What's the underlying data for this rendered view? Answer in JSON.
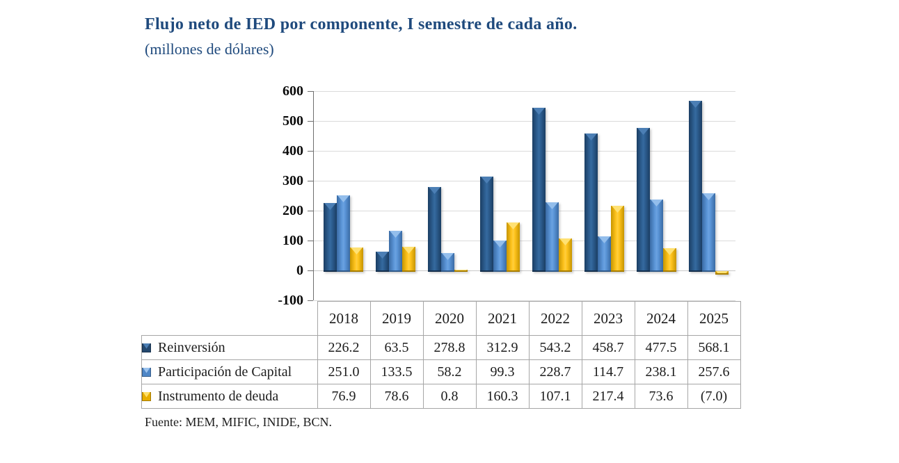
{
  "header": {
    "title": "Flujo neto de IED por componente, I semestre de cada año.",
    "subtitle": "(millones de dólares)"
  },
  "chart_data": {
    "type": "bar",
    "title": "Flujo neto de IED por componente, I semestre de cada año.",
    "units": "millones de dólares",
    "categories": [
      "2018",
      "2019",
      "2020",
      "2021",
      "2022",
      "2023",
      "2024",
      "2025"
    ],
    "series": [
      {
        "name": "Reinversión",
        "slug": "reinversion",
        "values": [
          226.2,
          63.5,
          278.8,
          312.9,
          543.2,
          458.7,
          477.5,
          568.1
        ],
        "color": "#2E6093",
        "edge": "#1B3E63",
        "highlight": "#4C7FB5"
      },
      {
        "name": "Participación de Capital",
        "slug": "participacion-de-capital",
        "values": [
          251.0,
          133.5,
          58.2,
          99.3,
          228.7,
          114.7,
          238.1,
          257.6
        ],
        "color": "#5C97D9",
        "edge": "#3A6BA4",
        "highlight": "#93BEEC"
      },
      {
        "name": "Instrumento de deuda",
        "slug": "instrumento-de-deuda",
        "values": [
          76.9,
          78.6,
          0.8,
          160.3,
          107.1,
          217.4,
          73.6,
          -7.0
        ],
        "color": "#FFC41E",
        "edge": "#C79500",
        "highlight": "#FFE173"
      }
    ],
    "y_axis": {
      "min": -100,
      "max": 600,
      "step": 100,
      "ticks": [
        "600",
        "500",
        "400",
        "300",
        "200",
        "100",
        "0",
        "-100"
      ]
    },
    "grid": true,
    "legend_position": "table-left"
  },
  "table": {
    "header_cells": [
      "2018",
      "2019",
      "2020",
      "2021",
      "2022",
      "2023",
      "2024",
      "2025"
    ],
    "rows": [
      {
        "label": "Reinversión",
        "values": [
          "226.2",
          "63.5",
          "278.8",
          "312.9",
          "543.2",
          "458.7",
          "477.5",
          "568.1"
        ]
      },
      {
        "label": "Participación de Capital",
        "values": [
          "251.0",
          "133.5",
          "58.2",
          "99.3",
          "228.7",
          "114.7",
          "238.1",
          "257.6"
        ]
      },
      {
        "label": "Instrumento de deuda",
        "values": [
          "76.9",
          "78.6",
          "0.8",
          "160.3",
          "107.1",
          "217.4",
          "73.6",
          "(7.0)"
        ]
      }
    ]
  },
  "footer": {
    "source": "Fuente: MEM, MIFIC, INIDE, BCN."
  }
}
